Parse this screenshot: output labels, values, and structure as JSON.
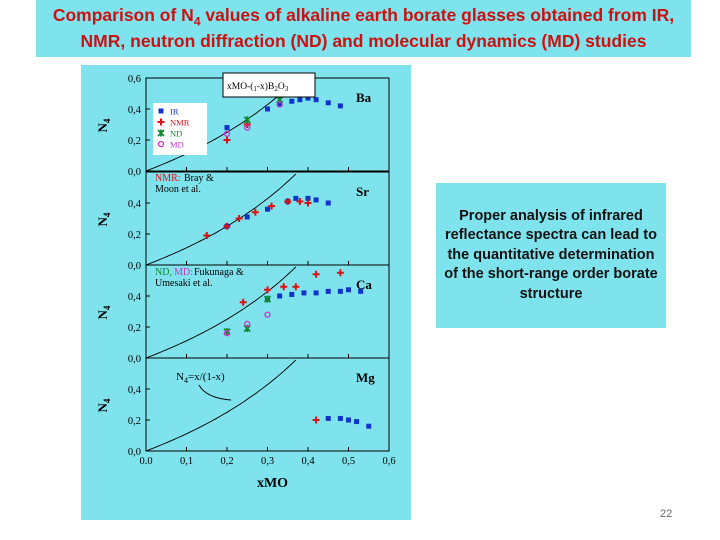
{
  "slide": {
    "title_line1_pre": "Comparison of N",
    "title_line1_sub": "4",
    "title_line1_post": " values of alkaline earth borate glasses obtained from IR,",
    "title_line2": "NMR, neutron diffraction (ND) and molecular dynamics (MD) studies",
    "callout": "Proper analysis of infrared reflectance spectra can lead to the quantitative determination of the short-range order borate structure",
    "page_number": "22"
  },
  "colors": {
    "background": "#7fe3ed",
    "title": "#cc1111",
    "IR": "#1133cc",
    "NMR": "#dd1111",
    "ND": "#118833",
    "MD": "#cc33cc"
  },
  "chart_data": {
    "type": "scatter",
    "xlabel": "xMO",
    "ylabel": "N4",
    "xlim": [
      0.0,
      0.6
    ],
    "x_ticks": [
      "0.0",
      "0,1",
      "0,2",
      "0,3",
      "0,4",
      "0,5",
      "0,6"
    ],
    "ylim": [
      0.0,
      0.6
    ],
    "grid": false,
    "legend_box": "xMO-(1-x)B2O3",
    "legend_entries": [
      "IR",
      "NMR",
      "ND",
      "MD"
    ],
    "curve_label": "N4=x/(1-x)",
    "panels": [
      {
        "name": "Ba",
        "y_ticks": [
          "0,0",
          "0,2",
          "0,4",
          "0,6"
        ],
        "annotation": "",
        "series": [
          {
            "name": "IR",
            "x": [
              0.2,
              0.3,
              0.33,
              0.36,
              0.38,
              0.4,
              0.42,
              0.45,
              0.48
            ],
            "y": [
              0.28,
              0.4,
              0.43,
              0.45,
              0.46,
              0.47,
              0.46,
              0.44,
              0.42
            ]
          },
          {
            "name": "NMR",
            "x": [
              0.2,
              0.25,
              0.4
            ],
            "y": [
              0.2,
              0.3,
              0.5
            ]
          },
          {
            "name": "ND",
            "x": [
              0.25,
              0.33
            ],
            "y": [
              0.33,
              0.46
            ]
          },
          {
            "name": "MD",
            "x": [
              0.2,
              0.25,
              0.33
            ],
            "y": [
              0.24,
              0.28,
              0.43
            ]
          }
        ]
      },
      {
        "name": "Sr",
        "y_ticks": [
          "0,0",
          "0,2",
          "0,4",
          ""
        ],
        "annotation": "NMR: Bray & Moon et al.",
        "series": [
          {
            "name": "IR",
            "x": [
              0.2,
              0.25,
              0.3,
              0.35,
              0.37,
              0.4,
              0.42,
              0.45
            ],
            "y": [
              0.25,
              0.31,
              0.36,
              0.41,
              0.43,
              0.43,
              0.42,
              0.4
            ]
          },
          {
            "name": "NMR",
            "x": [
              0.15,
              0.2,
              0.23,
              0.27,
              0.31,
              0.35,
              0.38,
              0.4
            ],
            "y": [
              0.19,
              0.25,
              0.3,
              0.34,
              0.38,
              0.41,
              0.41,
              0.4
            ]
          }
        ]
      },
      {
        "name": "Ca",
        "y_ticks": [
          "0,0",
          "0,2",
          "0,4",
          ""
        ],
        "annotation": "ND, MD: Fukunaga & Umesaki et al.",
        "series": [
          {
            "name": "IR",
            "x": [
              0.3,
              0.33,
              0.36,
              0.39,
              0.42,
              0.45,
              0.48,
              0.5,
              0.53
            ],
            "y": [
              0.38,
              0.4,
              0.41,
              0.42,
              0.42,
              0.43,
              0.43,
              0.44,
              0.43
            ]
          },
          {
            "name": "NMR",
            "x": [
              0.24,
              0.3,
              0.34,
              0.37,
              0.42,
              0.48
            ],
            "y": [
              0.36,
              0.44,
              0.46,
              0.46,
              0.54,
              0.55
            ]
          },
          {
            "name": "ND",
            "x": [
              0.2,
              0.25,
              0.3
            ],
            "y": [
              0.17,
              0.19,
              0.38
            ]
          },
          {
            "name": "MD",
            "x": [
              0.2,
              0.25,
              0.3
            ],
            "y": [
              0.16,
              0.22,
              0.28
            ]
          }
        ]
      },
      {
        "name": "Mg",
        "y_ticks": [
          "0,0",
          "0,2",
          "0,4",
          ""
        ],
        "annotation": "",
        "series": [
          {
            "name": "IR",
            "x": [
              0.45,
              0.48,
              0.5,
              0.52,
              0.55
            ],
            "y": [
              0.21,
              0.21,
              0.2,
              0.19,
              0.16
            ]
          },
          {
            "name": "NMR",
            "x": [
              0.42
            ],
            "y": [
              0.2
            ]
          }
        ]
      }
    ]
  }
}
